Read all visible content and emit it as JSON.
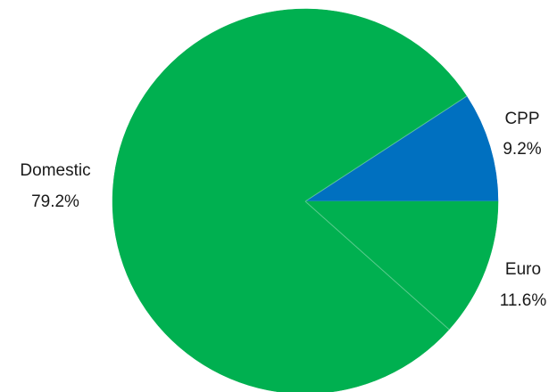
{
  "chart_data": {
    "type": "pie",
    "title": "",
    "start_angle_deg": 0,
    "direction": "counterclockwise",
    "slices": [
      {
        "name": "CPP",
        "value": 9.2,
        "label": "CPP",
        "value_label": "9.2%",
        "color": "#0070C0"
      },
      {
        "name": "Domestic",
        "value": 79.2,
        "label": "Domestic",
        "value_label": "79.2%",
        "color": "#00B050"
      },
      {
        "name": "Euro",
        "value": 11.6,
        "label": "Euro",
        "value_label": "11.6%",
        "color": "#00B050"
      }
    ]
  }
}
